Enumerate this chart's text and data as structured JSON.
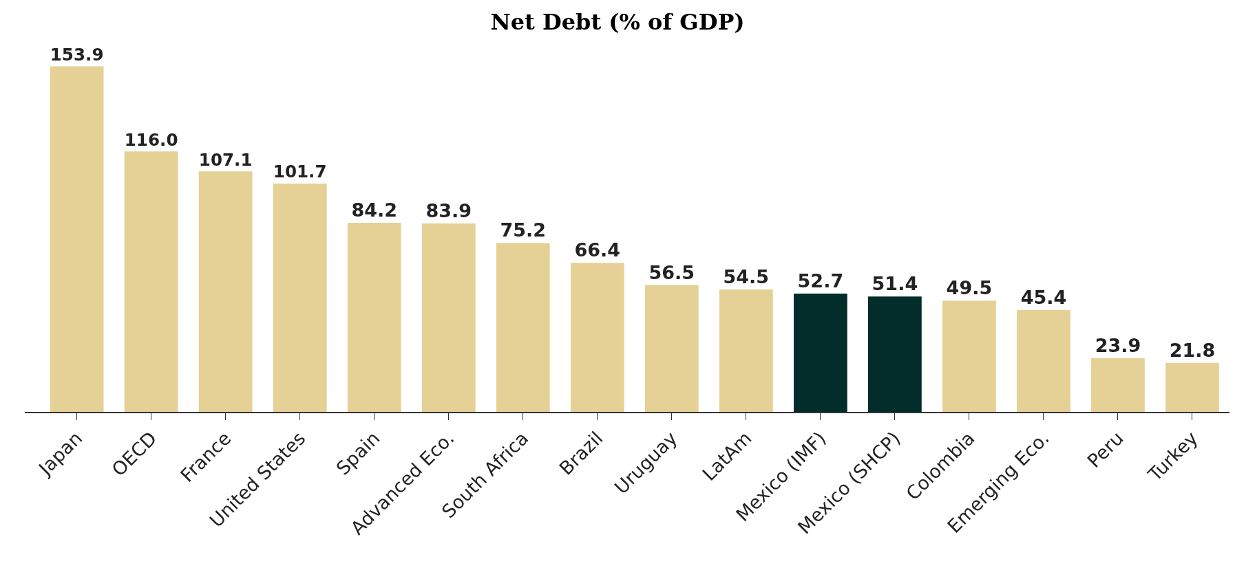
{
  "chart_data": {
    "type": "bar",
    "title": "Net Debt (% of GDP)",
    "categories": [
      "Japan",
      "OECD",
      "France",
      "United States",
      "Spain",
      "Advanced Eco.",
      "South Africa",
      "Brazil",
      "Uruguay",
      "LatAm",
      "Mexico (IMF)",
      "Mexico (SHCP)",
      "Colombia",
      "Emerging Eco.",
      "Peru",
      "Turkey"
    ],
    "values": [
      153.9,
      116.0,
      107.1,
      101.7,
      84.2,
      83.9,
      75.2,
      66.4,
      56.5,
      54.5,
      52.7,
      51.4,
      49.5,
      45.4,
      23.9,
      21.8
    ],
    "value_labels": [
      "153.9",
      "116.0",
      "107.1",
      "101.7",
      "84.2",
      "83.9",
      "75.2",
      "66.4",
      "56.5",
      "54.5",
      "52.7",
      "51.4",
      "49.5",
      "45.4",
      "23.9",
      "21.8"
    ],
    "colors": [
      "#e5d195",
      "#e5d195",
      "#e5d195",
      "#e5d195",
      "#e5d195",
      "#e5d195",
      "#e5d195",
      "#e5d195",
      "#e5d195",
      "#e5d195",
      "#032d2a",
      "#032d2a",
      "#e5d195",
      "#e5d195",
      "#e5d195",
      "#e5d195"
    ],
    "grid": false,
    "legend": false
  }
}
